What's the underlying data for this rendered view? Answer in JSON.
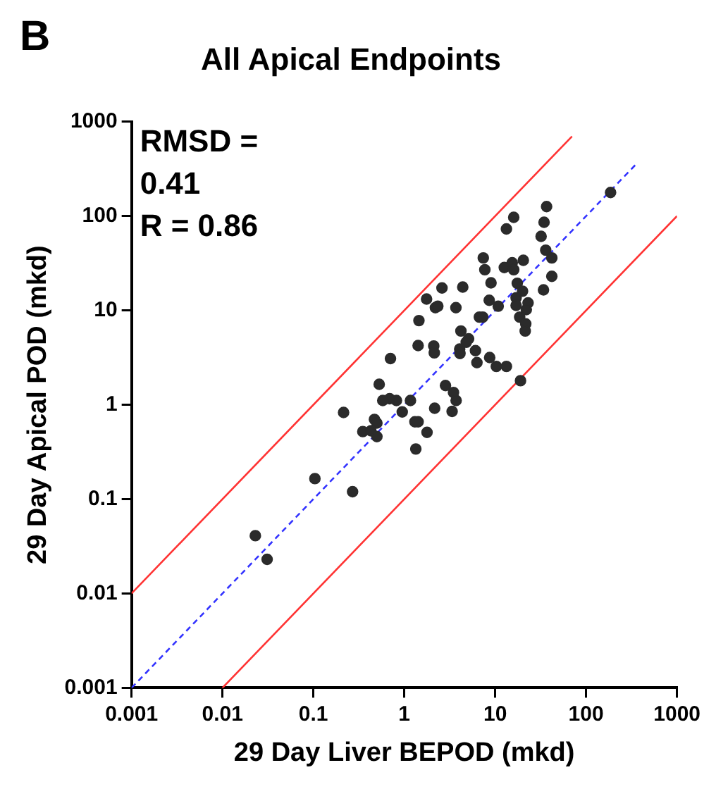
{
  "chart_data": {
    "type": "scatter",
    "title": "All Apical Endpoints",
    "xlabel": "29 Day Liver BEPOD (mkd)",
    "ylabel": "29 Day Apical POD (mkd)",
    "annotations": [
      "B",
      "RMSD = 0.41",
      "R = 0.86"
    ],
    "log": "xy",
    "grid": false,
    "legend": false,
    "marker": "circle",
    "xlim": [
      0.001,
      1000
    ],
    "ylim": [
      0.001,
      1000
    ],
    "xticks": [
      0.001,
      0.01,
      0.1,
      1,
      10,
      100,
      1000
    ],
    "yticks": [
      0.001,
      0.01,
      0.1,
      1,
      10,
      100,
      1000
    ],
    "series": [
      {
        "color": "#2b2b2b",
        "x": [
          186,
          36.8,
          16,
          13.3,
          34.5,
          32,
          36,
          42,
          42,
          34,
          7.4,
          7.7,
          12.6,
          15.4,
          16,
          20.4,
          17.5,
          20,
          17,
          23,
          17,
          22,
          18.6,
          21.7,
          21.4,
          9,
          8.6,
          10.8,
          6.7,
          7.3,
          4.4,
          2.6,
          1.76,
          2.2,
          2.34,
          3.7,
          1.45,
          4.2,
          5.1,
          4.8,
          4.07,
          4.1,
          6.07,
          6.3,
          8.7,
          10.3,
          13.3,
          19,
          1.42,
          2.11,
          2.14,
          0.705,
          0.53,
          2.84,
          3.48,
          3.72,
          3.36,
          2.16,
          1.17,
          0.95,
          0.82,
          0.69,
          0.58,
          0.215,
          0.47,
          0.5,
          0.35,
          0.43,
          0.5,
          1.31,
          1.42,
          1.78,
          1.34,
          0.104,
          0.27,
          0.023,
          0.031
        ],
        "values": [
          178,
          126,
          97,
          73,
          86,
          61,
          43.5,
          36,
          23,
          16.5,
          36,
          27,
          28.5,
          32,
          27,
          34,
          19.4,
          16,
          13.6,
          12,
          11.3,
          10.2,
          8.5,
          7.2,
          6.05,
          19.6,
          12.8,
          11.1,
          8.5,
          8.5,
          17.7,
          17.3,
          13.2,
          10.7,
          11.1,
          10.7,
          7.8,
          6.05,
          5,
          4.6,
          3.9,
          3.5,
          3.75,
          2.8,
          3.17,
          2.55,
          2.55,
          1.8,
          4.25,
          4.2,
          3.55,
          3.09,
          1.65,
          1.6,
          1.35,
          1.11,
          0.85,
          0.92,
          1.11,
          0.84,
          1.11,
          1.16,
          1.11,
          0.83,
          0.7,
          0.64,
          0.52,
          0.53,
          0.46,
          0.66,
          0.66,
          0.51,
          0.34,
          0.165,
          0.12,
          0.041,
          0.023
        ]
      },
      {
        "type": "line",
        "color": "#ff3333",
        "line_style": "solid",
        "marker": "none",
        "x": [
          0.001,
          70
        ],
        "values": [
          0.01,
          700
        ]
      },
      {
        "type": "line",
        "color": "#3333ff",
        "line_style": "dashed",
        "marker": "none",
        "x": [
          0.001,
          360
        ],
        "values": [
          0.001,
          360
        ]
      },
      {
        "type": "line",
        "color": "#ff3333",
        "line_style": "solid",
        "marker": "none",
        "x": [
          0.01,
          1000
        ],
        "values": [
          0.001,
          100
        ]
      }
    ]
  }
}
